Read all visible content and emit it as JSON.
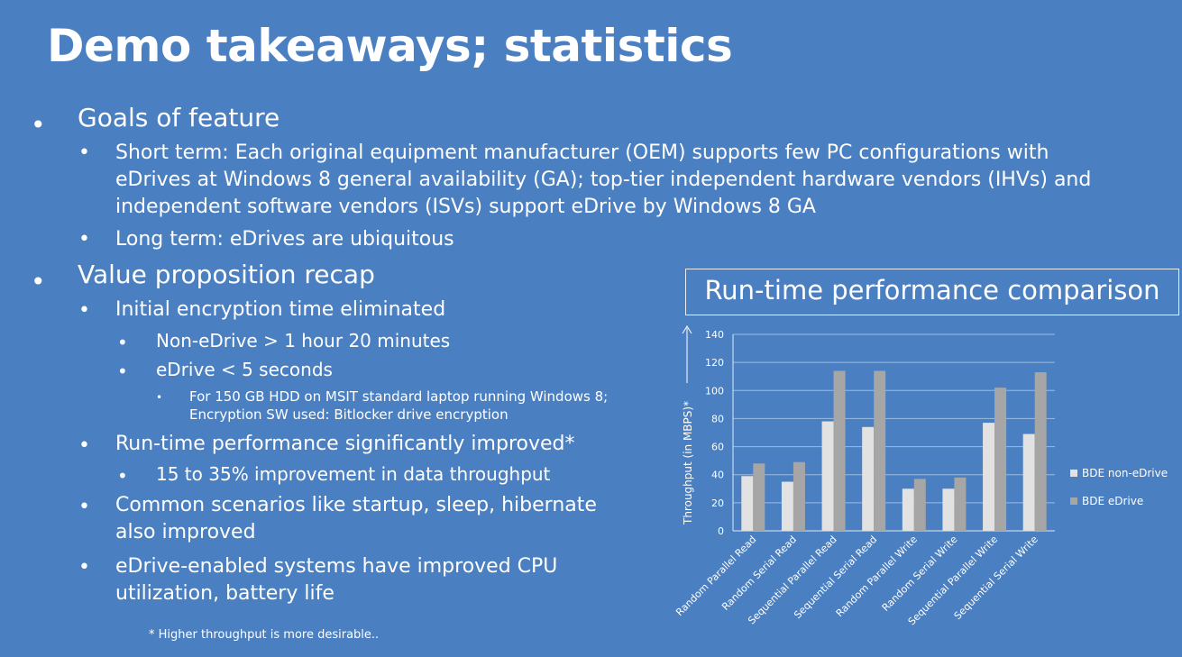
{
  "slide": {
    "title": "Demo takeaways; statistics",
    "goals": {
      "heading": "Goals of feature",
      "short_term": "Short term: Each original equipment manufacturer (OEM) supports few PC configurations with eDrives at Windows 8 general availability (GA); top-tier independent hardware vendors (IHVs) and independent software vendors (ISVs) support eDrive by Windows 8 GA",
      "long_term": "Long term: eDrives are ubiquitous"
    },
    "value": {
      "heading": "Value proposition recap",
      "initial": "Initial encryption time eliminated",
      "non_edrive": "Non-eDrive > 1 hour 20 minutes",
      "edrive": "eDrive < 5 seconds",
      "footnote_detail": "For 150 GB HDD on MSIT standard laptop running Windows 8; Encryption SW used: Bitlocker drive encryption",
      "runtime": "Run-time performance significantly improved*",
      "improvement": "15 to 35% improvement in data throughput",
      "scenarios": "Common scenarios like startup, sleep, hibernate also improved",
      "cpu": "eDrive-enabled systems have improved CPU utilization, battery life"
    },
    "footer": "* Higher throughput is more desirable..",
    "bullet_glyph": "•"
  },
  "chart_data": {
    "type": "bar",
    "title": "Run-time performance comparison",
    "ylabel": "Throughput (in MBPS)*",
    "xlabel": "",
    "ylim": [
      0,
      140
    ],
    "yticks": [
      0,
      20,
      40,
      60,
      80,
      100,
      120,
      140
    ],
    "grid": true,
    "legend_position": "right",
    "categories": [
      "Random Parallel Read",
      "Random Serial Read",
      "Sequential Parallel Read",
      "Sequential Serial Read",
      "Random Parallel Write",
      "Random Serial Write",
      "Sequential Parallel Write",
      "Sequential Serial Write"
    ],
    "series": [
      {
        "name": "BDE non-eDrive",
        "color": "#e2e2e2",
        "values": [
          39,
          35,
          78,
          74,
          30,
          30,
          77,
          69
        ]
      },
      {
        "name": "BDE eDrive",
        "color": "#a6a6a6",
        "values": [
          48,
          49,
          114,
          114,
          37,
          38,
          102,
          113
        ]
      }
    ]
  }
}
